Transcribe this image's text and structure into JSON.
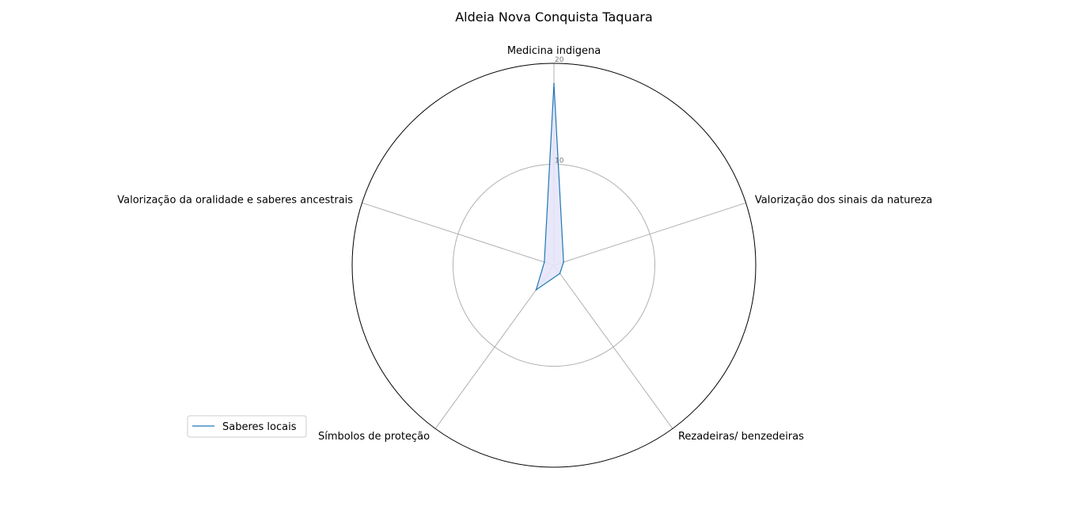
{
  "chart_data": {
    "type": "radar",
    "title": "Aldeia Nova Conquista Taquara",
    "axes": [
      "Medicina indigena",
      "Valorização dos sinais da natureza",
      "Rezadeiras/ benzedeiras",
      "Símbolos de proteção",
      "Valorização da oralidade e saberes ancestrais"
    ],
    "series": [
      {
        "name": "Saberes locais",
        "values": [
          18,
          1,
          1,
          3,
          1
        ]
      }
    ],
    "rlim": [
      0,
      20
    ],
    "rticks": [
      10,
      20
    ],
    "rtick_labels": [
      "10",
      "20"
    ],
    "grid": true,
    "legend": "lower-left",
    "colors": {
      "line": "#1f77b4",
      "fill": "#e6e6fa",
      "grid": "#b0b0b0",
      "frame": "#000000"
    }
  }
}
